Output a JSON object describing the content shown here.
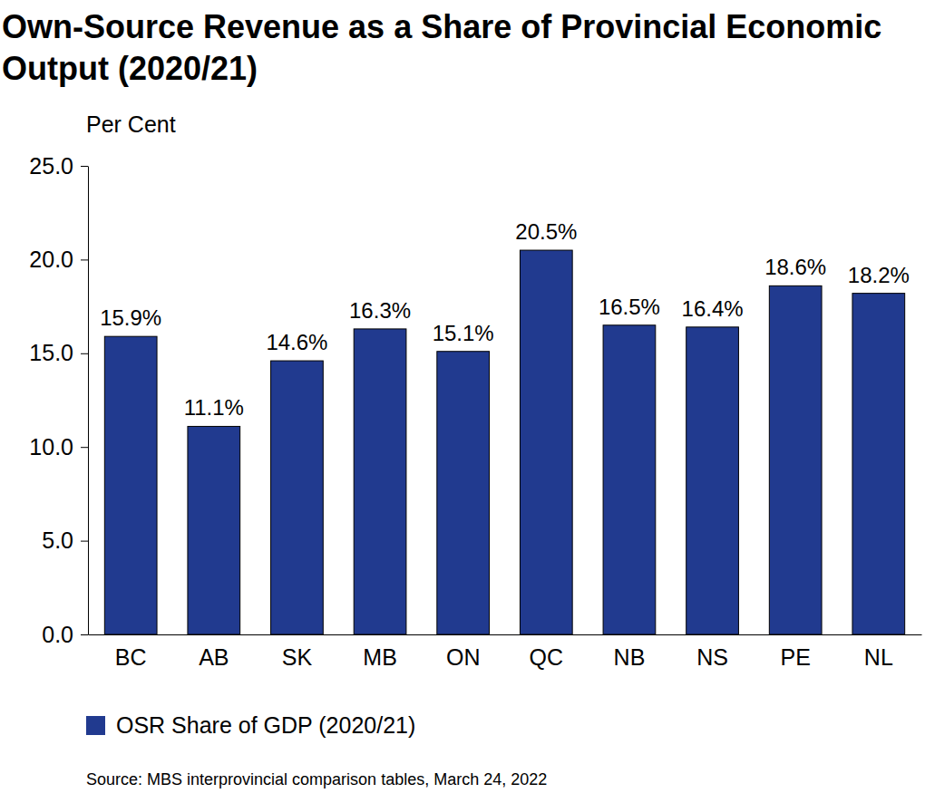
{
  "chart_data": {
    "type": "bar",
    "title": "Own-Source Revenue as a Share of Provincial Economic Output (2020/21)",
    "y_label": "Per Cent",
    "source": "Source: MBS interprovincial comparison tables, March 24, 2022",
    "categories": [
      "BC",
      "AB",
      "SK",
      "MB",
      "ON",
      "QC",
      "NB",
      "NS",
      "PE",
      "NL"
    ],
    "series": [
      {
        "name": "OSR Share of GDP (2020/21)",
        "color": "#213a8f",
        "values": [
          15.9,
          11.1,
          14.6,
          16.3,
          15.1,
          20.5,
          16.5,
          16.4,
          18.6,
          18.2
        ],
        "value_labels": [
          "15.9%",
          "11.1%",
          "14.6%",
          "16.3%",
          "15.1%",
          "20.5%",
          "16.5%",
          "16.4%",
          "18.6%",
          "18.2%"
        ]
      }
    ],
    "ylim": [
      0,
      25
    ],
    "yticks": [
      {
        "value": 0,
        "label": "0.0"
      },
      {
        "value": 5,
        "label": "5.0"
      },
      {
        "value": 10,
        "label": "10.0"
      },
      {
        "value": 15,
        "label": "15.0"
      },
      {
        "value": 20,
        "label": "20.0"
      },
      {
        "value": 25,
        "label": "25.0"
      }
    ],
    "grid": false,
    "legend": "bottom",
    "data_labels": true
  }
}
